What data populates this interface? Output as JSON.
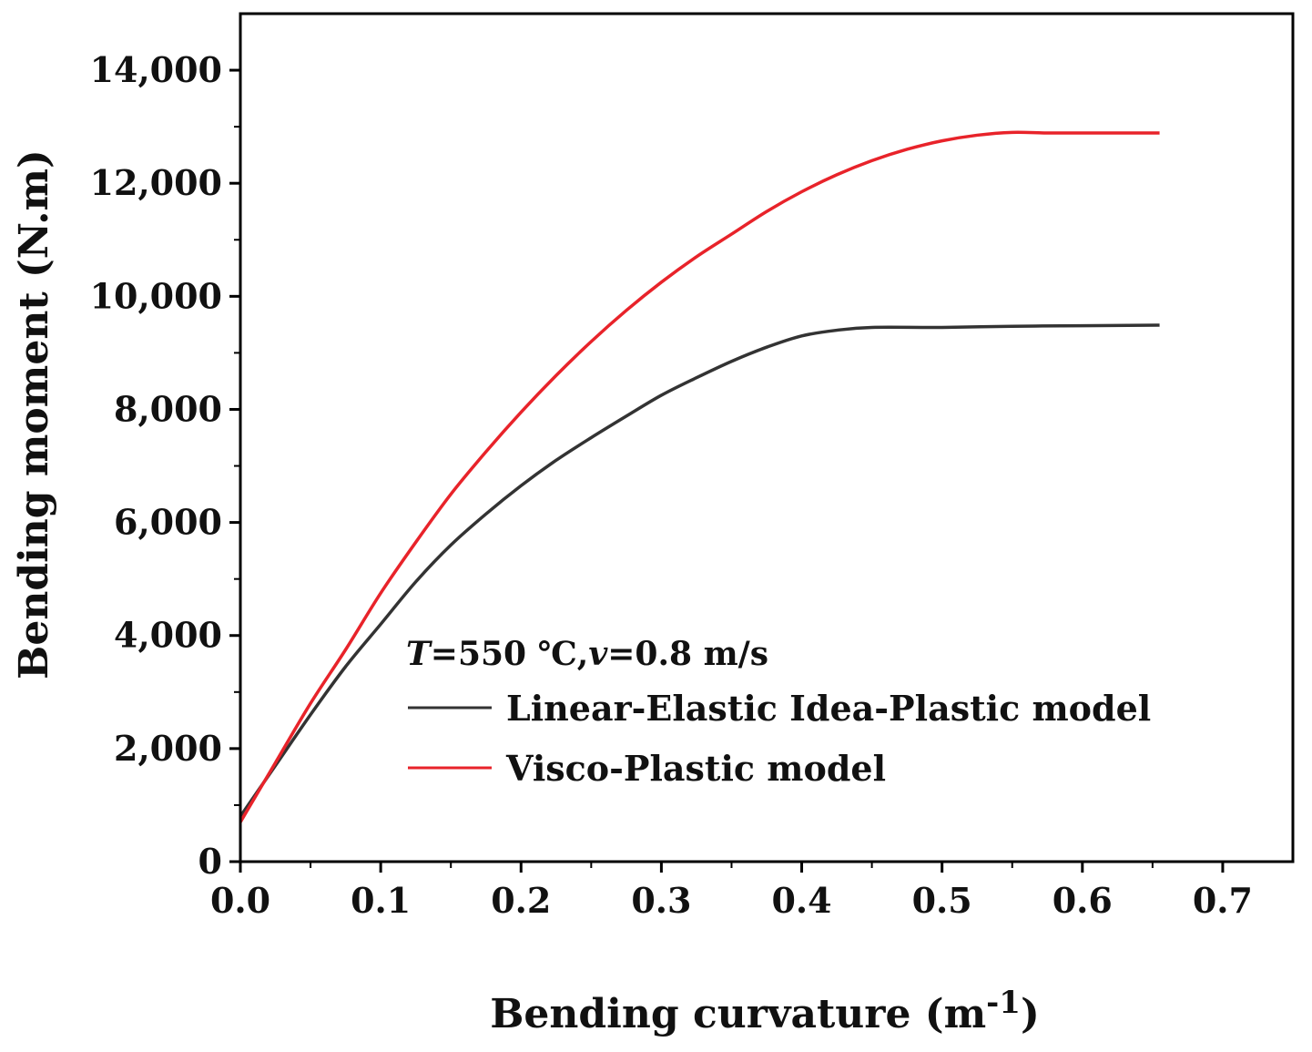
{
  "chart_data": {
    "type": "line",
    "xlabel": "Bending curvature (m",
    "xlabel_sup": "-1",
    "xlabel_end": ")",
    "ylabel": "Bending moment (N.m)",
    "xlim": [
      0,
      0.75
    ],
    "ylim": [
      0,
      15000
    ],
    "x_ticks": [
      "0.0",
      "0.1",
      "0.2",
      "0.3",
      "0.4",
      "0.5",
      "0.6",
      "0.7"
    ],
    "x_tick_values": [
      0,
      0.1,
      0.2,
      0.3,
      0.4,
      0.5,
      0.6,
      0.7
    ],
    "y_ticks": [
      "0",
      "2,000",
      "4,000",
      "6,000",
      "8,000",
      "10,000",
      "12,000",
      "14,000"
    ],
    "y_tick_values": [
      0,
      2000,
      4000,
      6000,
      8000,
      10000,
      12000,
      14000
    ],
    "annotation": {
      "T_symbol": "T",
      "T_value": "=550 ℃,",
      "v_symbol": "v",
      "v_value": "=0.8 m/s"
    },
    "legend_position": "center-left",
    "series": [
      {
        "name": "Linear-Elastic Idea-Plastic model",
        "color": "#333333",
        "x": [
          0,
          0.025,
          0.05,
          0.075,
          0.1,
          0.125,
          0.15,
          0.175,
          0.2,
          0.225,
          0.25,
          0.275,
          0.3,
          0.325,
          0.35,
          0.375,
          0.4,
          0.425,
          0.45,
          0.5,
          0.55,
          0.6,
          0.655
        ],
        "y": [
          800,
          1700,
          2600,
          3450,
          4200,
          4950,
          5600,
          6150,
          6650,
          7100,
          7500,
          7880,
          8250,
          8560,
          8850,
          9100,
          9300,
          9400,
          9450,
          9450,
          9470,
          9480,
          9490
        ]
      },
      {
        "name": "Visco-Plastic model",
        "color": "#e8232a",
        "x": [
          0,
          0.025,
          0.05,
          0.075,
          0.1,
          0.125,
          0.15,
          0.175,
          0.2,
          0.225,
          0.25,
          0.275,
          0.3,
          0.325,
          0.35,
          0.375,
          0.4,
          0.425,
          0.45,
          0.475,
          0.5,
          0.525,
          0.55,
          0.575,
          0.6,
          0.655
        ],
        "y": [
          700,
          1750,
          2800,
          3750,
          4750,
          5650,
          6500,
          7250,
          7950,
          8600,
          9200,
          9750,
          10250,
          10700,
          11100,
          11500,
          11850,
          12150,
          12400,
          12600,
          12750,
          12850,
          12900,
          12890,
          12890,
          12890
        ]
      }
    ]
  }
}
